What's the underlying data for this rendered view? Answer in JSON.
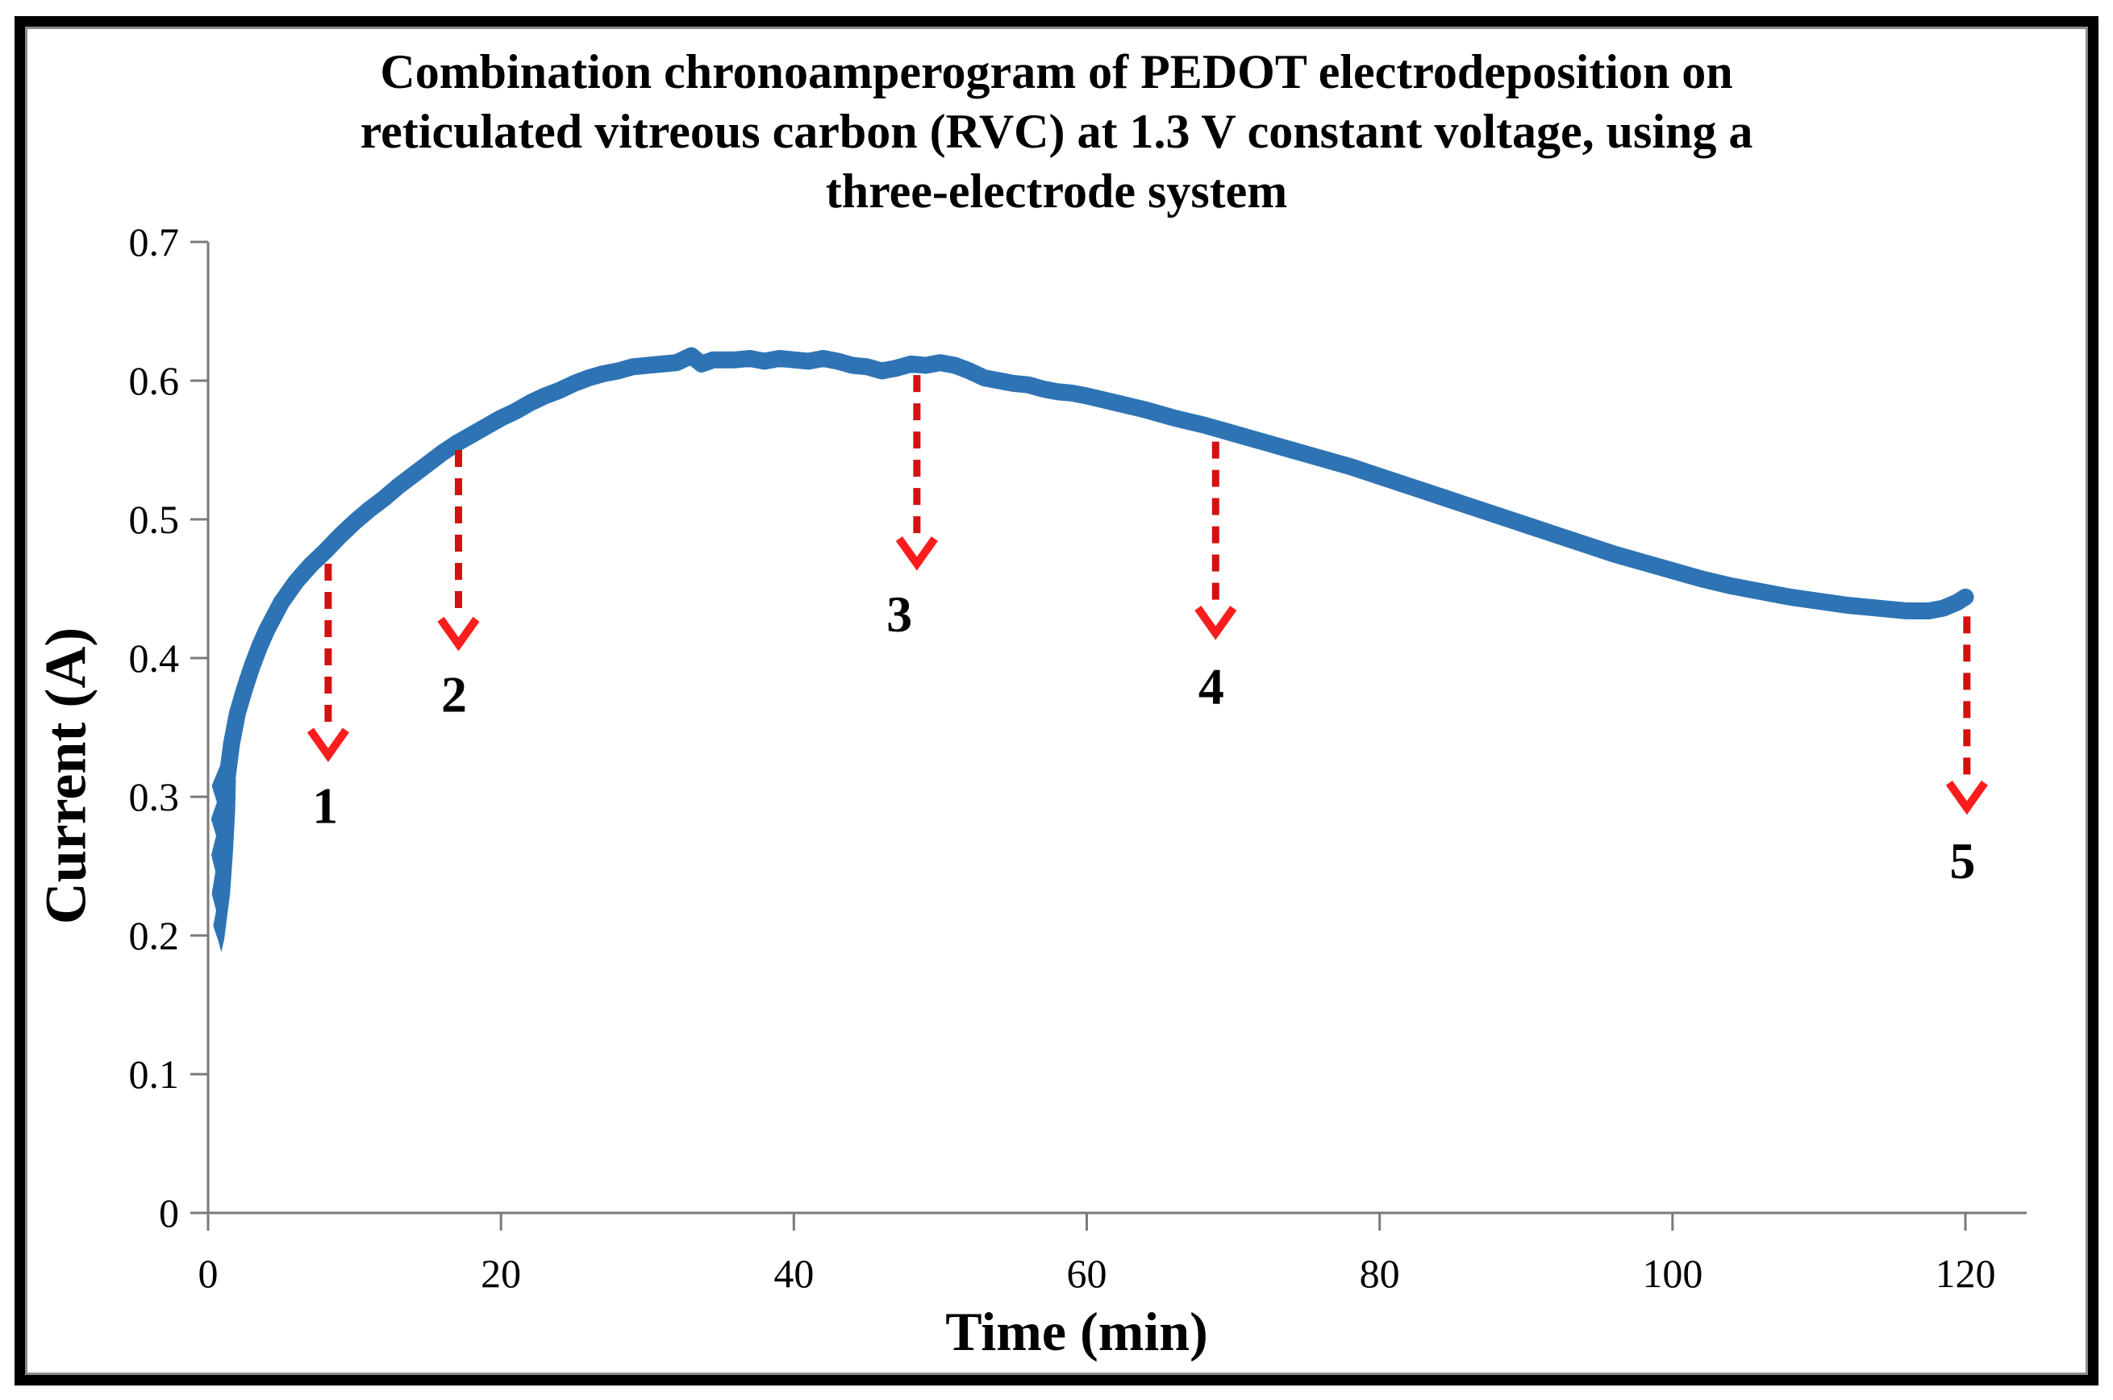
{
  "chart_data": {
    "type": "scatter",
    "title": "Combination chronoamperogram of PEDOT electrodeposition on reticulated vitreous carbon (RVC) at 1.3 V constant voltage, using a three-electrode system",
    "title_lines": [
      "Combination chronoamperogram of PEDOT electrodeposition on",
      "reticulated vitreous carbon (RVC) at 1.3 V constant voltage, using a",
      "three-electrode system"
    ],
    "xlabel": "Time (min)",
    "ylabel": "Current (A)",
    "xlim": [
      0,
      120
    ],
    "ylim": [
      0,
      0.7
    ],
    "xtick_values": [
      0,
      20,
      40,
      60,
      80,
      100,
      120
    ],
    "xtick_labels": [
      "0",
      "20",
      "40",
      "60",
      "80",
      "100",
      "120"
    ],
    "ytick_values": [
      0,
      0.1,
      0.2,
      0.3,
      0.4,
      0.5,
      0.6,
      0.7
    ],
    "ytick_labels": [
      "0",
      "0.1",
      "0.2",
      "0.3",
      "0.4",
      "0.5",
      "0.6",
      "0.7"
    ],
    "grid": false,
    "legend": "none",
    "colors": {
      "series": "#2E74B5",
      "arrow_dash": "#d31111",
      "arrow_head": "#fb1d1d",
      "axis": "#7a7a7a",
      "text": "#000000"
    },
    "start_scatter": {
      "description": "dense vertical cluster of points at t≈0 (initial current transient)",
      "outline": [
        [
          1.1,
          0.197
        ],
        [
          1.5,
          0.23
        ],
        [
          1.7,
          0.26
        ],
        [
          1.85,
          0.29
        ],
        [
          1.9,
          0.312
        ],
        [
          1.4,
          0.326
        ],
        [
          0.8,
          0.322
        ],
        [
          0.25,
          0.308
        ],
        [
          0.6,
          0.296
        ],
        [
          0.2,
          0.284
        ],
        [
          0.55,
          0.272
        ],
        [
          0.22,
          0.258
        ],
        [
          0.5,
          0.246
        ],
        [
          0.25,
          0.23
        ],
        [
          0.55,
          0.218
        ],
        [
          0.35,
          0.207
        ],
        [
          0.7,
          0.196
        ],
        [
          0.9,
          0.188
        ]
      ]
    },
    "series": [
      {
        "name": "current",
        "points": [
          [
            1.2,
            0.305
          ],
          [
            1.6,
            0.338
          ],
          [
            2.0,
            0.36
          ],
          [
            2.5,
            0.378
          ],
          [
            3.0,
            0.394
          ],
          [
            3.5,
            0.408
          ],
          [
            4.0,
            0.42
          ],
          [
            5.0,
            0.44
          ],
          [
            6.0,
            0.455
          ],
          [
            7.0,
            0.467
          ],
          [
            8.0,
            0.477
          ],
          [
            9.0,
            0.488
          ],
          [
            10,
            0.498
          ],
          [
            11,
            0.507
          ],
          [
            12,
            0.515
          ],
          [
            13,
            0.524
          ],
          [
            14,
            0.532
          ],
          [
            15,
            0.54
          ],
          [
            16,
            0.548
          ],
          [
            17,
            0.555
          ],
          [
            18,
            0.561
          ],
          [
            19,
            0.567
          ],
          [
            20,
            0.573
          ],
          [
            21,
            0.578
          ],
          [
            22,
            0.584
          ],
          [
            23,
            0.589
          ],
          [
            24,
            0.593
          ],
          [
            25,
            0.598
          ],
          [
            26,
            0.602
          ],
          [
            27,
            0.605
          ],
          [
            28,
            0.607
          ],
          [
            29,
            0.61
          ],
          [
            30,
            0.611
          ],
          [
            31,
            0.612
          ],
          [
            32,
            0.613
          ],
          [
            33,
            0.618
          ],
          [
            33.7,
            0.612
          ],
          [
            34.5,
            0.615
          ],
          [
            36,
            0.615
          ],
          [
            37,
            0.616
          ],
          [
            38,
            0.614
          ],
          [
            39,
            0.616
          ],
          [
            40,
            0.615
          ],
          [
            41,
            0.614
          ],
          [
            42,
            0.616
          ],
          [
            43,
            0.614
          ],
          [
            44,
            0.611
          ],
          [
            45,
            0.61
          ],
          [
            46,
            0.607
          ],
          [
            47,
            0.609
          ],
          [
            48,
            0.612
          ],
          [
            49,
            0.611
          ],
          [
            50,
            0.613
          ],
          [
            51,
            0.611
          ],
          [
            52,
            0.607
          ],
          [
            53,
            0.602
          ],
          [
            54,
            0.6
          ],
          [
            55,
            0.598
          ],
          [
            56,
            0.597
          ],
          [
            57,
            0.594
          ],
          [
            58,
            0.592
          ],
          [
            59,
            0.591
          ],
          [
            60,
            0.589
          ],
          [
            62,
            0.584
          ],
          [
            64,
            0.579
          ],
          [
            66,
            0.573
          ],
          [
            68,
            0.568
          ],
          [
            70,
            0.562
          ],
          [
            72,
            0.556
          ],
          [
            74,
            0.55
          ],
          [
            76,
            0.544
          ],
          [
            78,
            0.538
          ],
          [
            80,
            0.531
          ],
          [
            82,
            0.524
          ],
          [
            84,
            0.517
          ],
          [
            86,
            0.51
          ],
          [
            88,
            0.503
          ],
          [
            90,
            0.496
          ],
          [
            92,
            0.489
          ],
          [
            94,
            0.482
          ],
          [
            96,
            0.475
          ],
          [
            98,
            0.469
          ],
          [
            100,
            0.463
          ],
          [
            102,
            0.457
          ],
          [
            104,
            0.452
          ],
          [
            106,
            0.448
          ],
          [
            108,
            0.444
          ],
          [
            110,
            0.441
          ],
          [
            112,
            0.438
          ],
          [
            114,
            0.436
          ],
          [
            116,
            0.434
          ],
          [
            117.5,
            0.434
          ],
          [
            118.5,
            0.436
          ],
          [
            119.4,
            0.44
          ],
          [
            120,
            0.444
          ]
        ]
      }
    ],
    "annotations": [
      {
        "label": "1",
        "t": 8.2,
        "arrow_from": 0.468,
        "arrow_to": 0.33,
        "label_t": 8.0,
        "label_i": 0.294
      },
      {
        "label": "2",
        "t": 17.1,
        "arrow_from": 0.55,
        "arrow_to": 0.41,
        "label_t": 16.8,
        "label_i": 0.374
      },
      {
        "label": "3",
        "t": 48.4,
        "arrow_from": 0.604,
        "arrow_to": 0.468,
        "label_t": 47.2,
        "label_i": 0.432
      },
      {
        "label": "4",
        "t": 68.8,
        "arrow_from": 0.556,
        "arrow_to": 0.418,
        "label_t": 68.5,
        "label_i": 0.38
      },
      {
        "label": "5",
        "t": 120.1,
        "arrow_from": 0.43,
        "arrow_to": 0.292,
        "label_t": 119.8,
        "label_i": 0.254
      }
    ]
  }
}
